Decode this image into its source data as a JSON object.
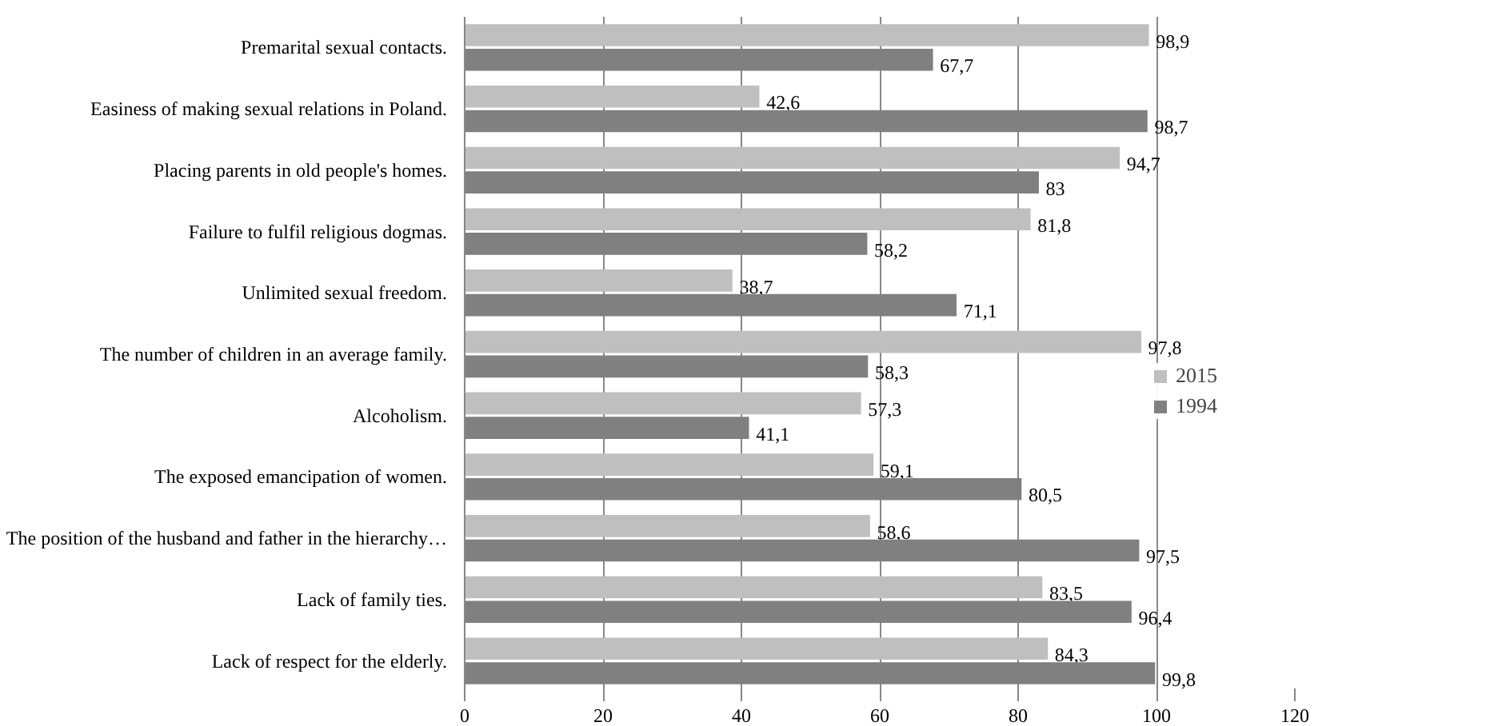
{
  "chart_data": {
    "type": "bar",
    "orientation": "horizontal",
    "categories": [
      "Premarital sexual contacts.",
      "Easiness of making sexual relations in Poland.",
      "Placing parents in old people's homes.",
      "Failure to fulfil religious dogmas.",
      "Unlimited sexual freedom.",
      "The number of children in an average family.",
      "Alcoholism.",
      "The exposed emancipation of women.",
      "The position of the husband and father in the hierarchy…",
      "Lack of family ties.",
      "Lack of respect for the elderly."
    ],
    "series": [
      {
        "name": "2015",
        "color": "#bfbfbf",
        "values": [
          98.9,
          42.6,
          94.7,
          81.8,
          38.7,
          97.8,
          57.3,
          59.1,
          58.6,
          83.5,
          84.3
        ],
        "value_labels": [
          "98,9",
          "42,6",
          "94,7",
          "81,8",
          "38,7",
          "97,8",
          "57,3",
          "59,1",
          "58,6",
          "83,5",
          "84,3"
        ]
      },
      {
        "name": "1994",
        "color": "#808080",
        "values": [
          67.7,
          98.7,
          83,
          58.2,
          71.1,
          58.3,
          41.1,
          80.5,
          97.5,
          96.4,
          99.8
        ],
        "value_labels": [
          "67,7",
          "98,7",
          "83",
          "58,2",
          "71,1",
          "58,3",
          "41,1",
          "80,5",
          "97,5",
          "96,4",
          "99,8"
        ]
      }
    ],
    "xlim": [
      0,
      120
    ],
    "xticks": [
      0,
      20,
      40,
      60,
      80,
      100,
      120
    ],
    "grid": "x",
    "legend": "right"
  }
}
